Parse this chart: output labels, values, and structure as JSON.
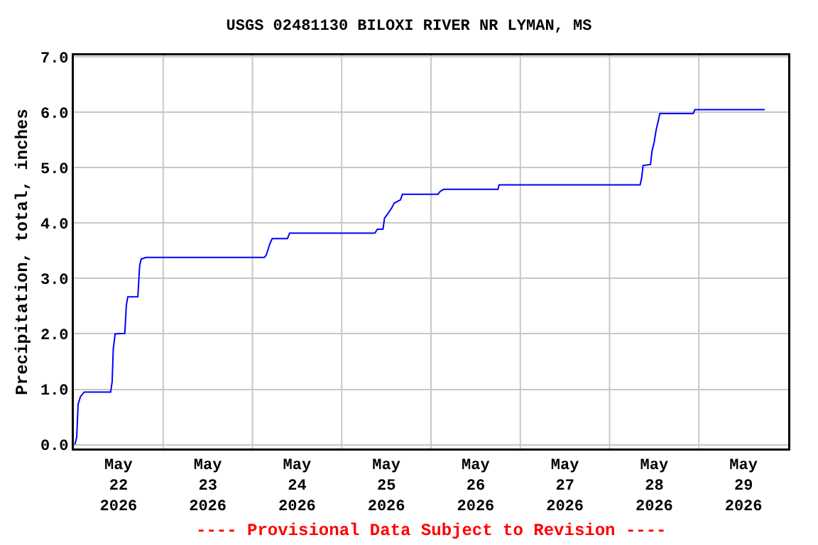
{
  "chart_data": {
    "type": "line",
    "title": "USGS 02481130 BILOXI RIVER NR LYMAN, MS",
    "ylabel": "Precipitation, total, inches",
    "annotations": [
      "---- Provisional Data Subject to Revision ----"
    ],
    "x": [
      "2026-05-22T00:16",
      "2026-05-22T00:46",
      "2026-05-22T01:09",
      "2026-05-22T01:48",
      "2026-05-22T02:48",
      "2026-05-22T09:54",
      "2026-05-22T10:18",
      "2026-05-22T10:36",
      "2026-05-22T11:06",
      "2026-05-22T13:42",
      "2026-05-22T14:06",
      "2026-05-22T14:30",
      "2026-05-22T17:12",
      "2026-05-22T17:42",
      "2026-05-22T18:06",
      "2026-05-22T19:24",
      "2026-05-24T03:12",
      "2026-05-24T03:42",
      "2026-05-24T04:42",
      "2026-05-24T05:18",
      "2026-05-24T09:24",
      "2026-05-24T10:00",
      "2026-05-25T08:54",
      "2026-05-25T09:36",
      "2026-05-25T11:06",
      "2026-05-25T11:30",
      "2026-05-25T12:24",
      "2026-05-25T13:24",
      "2026-05-25T14:06",
      "2026-05-25T15:48",
      "2026-05-25T16:18",
      "2026-05-26T01:54",
      "2026-05-26T02:24",
      "2026-05-26T03:24",
      "2026-05-26T18:00",
      "2026-05-26T18:18",
      "2026-05-28T08:12",
      "2026-05-28T08:36",
      "2026-05-28T09:00",
      "2026-05-28T11:00",
      "2026-05-28T11:24",
      "2026-05-28T12:00",
      "2026-05-28T12:30",
      "2026-05-28T13:06",
      "2026-05-28T13:30",
      "2026-05-28T22:30",
      "2026-05-28T22:54",
      "2026-05-29T17:42"
    ],
    "series": [
      {
        "color": "#0000ff",
        "values": [
          0,
          0.13,
          0.73,
          0.87,
          0.95,
          0.95,
          1.14,
          1.73,
          2.0,
          2.01,
          2.51,
          2.67,
          2.67,
          3.24,
          3.35,
          3.38,
          3.38,
          3.42,
          3.63,
          3.72,
          3.72,
          3.82,
          3.82,
          3.89,
          3.89,
          4.09,
          4.17,
          4.27,
          4.36,
          4.42,
          4.52,
          4.52,
          4.57,
          4.61,
          4.61,
          4.69,
          4.69,
          4.81,
          5.04,
          5.06,
          5.3,
          5.47,
          5.68,
          5.85,
          5.98,
          5.98,
          6.05,
          6.05
        ]
      }
    ],
    "xlim": [
      "2026-05-22T00:00",
      "2026-05-30T00:00"
    ],
    "xticks": [
      {
        "value": "2026-05-22T12:00",
        "label": "May\n22\n2026"
      },
      {
        "value": "2026-05-23T00:00",
        "label": null
      },
      {
        "value": "2026-05-23T12:00",
        "label": "May\n23\n2026"
      },
      {
        "value": "2026-05-24T00:00",
        "label": null
      },
      {
        "value": "2026-05-24T12:00",
        "label": "May\n24\n2026"
      },
      {
        "value": "2026-05-25T00:00",
        "label": null
      },
      {
        "value": "2026-05-25T12:00",
        "label": "May\n25\n2026"
      },
      {
        "value": "2026-05-26T00:00",
        "label": null
      },
      {
        "value": "2026-05-26T12:00",
        "label": "May\n26\n2026"
      },
      {
        "value": "2026-05-27T00:00",
        "label": null
      },
      {
        "value": "2026-05-27T12:00",
        "label": "May\n27\n2026"
      },
      {
        "value": "2026-05-28T00:00",
        "label": null
      },
      {
        "value": "2026-05-28T12:00",
        "label": "May\n28\n2026"
      },
      {
        "value": "2026-05-29T00:00",
        "label": null
      },
      {
        "value": "2026-05-29T12:00",
        "label": "May\n29\n2026"
      }
    ],
    "ylim": [
      -0.07,
      7.03
    ],
    "yticks": [
      {
        "value": 0,
        "label": "0.0"
      },
      {
        "value": 1,
        "label": "1.0"
      },
      {
        "value": 2,
        "label": "2.0"
      },
      {
        "value": 3,
        "label": "3.0"
      },
      {
        "value": 4,
        "label": "4.0"
      },
      {
        "value": 5,
        "label": "5.0"
      },
      {
        "value": 6,
        "label": "6.0"
      },
      {
        "value": 7,
        "label": "7.0"
      }
    ],
    "grid": true,
    "marker": "none",
    "line_style": "solid"
  }
}
